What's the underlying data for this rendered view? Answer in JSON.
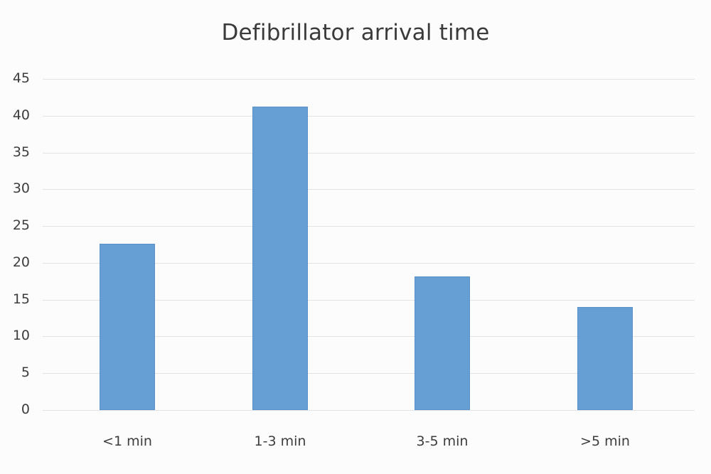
{
  "chart_data": {
    "type": "bar",
    "title": "Defibrillator arrival time",
    "xlabel": "",
    "ylabel": "",
    "categories": [
      "<1 min",
      "1-3 min",
      "3-5 min",
      ">5 min"
    ],
    "values": [
      22.6,
      41.2,
      18.2,
      14.0
    ],
    "ylim": [
      0,
      45
    ],
    "yticks": [
      0,
      5,
      10,
      15,
      20,
      25,
      30,
      35,
      40,
      45
    ],
    "grid": true,
    "legend": null,
    "colors": {
      "bar": "#659fd4",
      "grid": "#e2e2e2",
      "text": "#3d3d3d"
    }
  },
  "labels": {
    "title": "Defibrillator arrival time",
    "yticks": [
      "0",
      "5",
      "10",
      "15",
      "20",
      "25",
      "30",
      "35",
      "40",
      "45"
    ],
    "xticks": [
      "<1 min",
      "1-3 min",
      "3-5 min",
      ">5 min"
    ]
  }
}
